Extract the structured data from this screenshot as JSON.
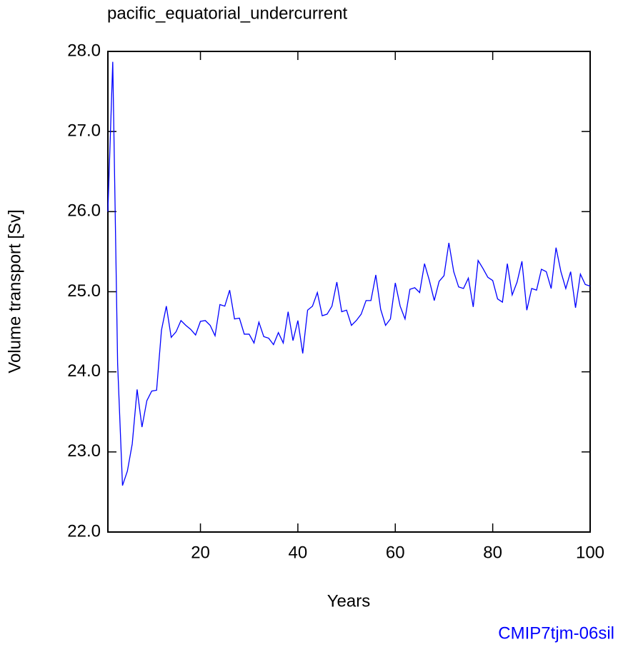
{
  "chart_data": {
    "type": "line",
    "title": "pacific_equatorial_undercurrent",
    "x_label": "Years",
    "y_label": "Volume transport [Sv]",
    "footer": "CMIP7tjm-06sil",
    "color": "#0000ff",
    "x": [
      1,
      2,
      3,
      4,
      5,
      6,
      7,
      8,
      9,
      10,
      11,
      12,
      13,
      14,
      15,
      16,
      17,
      18,
      19,
      20,
      21,
      22,
      23,
      24,
      25,
      26,
      27,
      28,
      29,
      30,
      31,
      32,
      33,
      34,
      35,
      36,
      37,
      38,
      39,
      40,
      41,
      42,
      43,
      44,
      45,
      46,
      47,
      48,
      49,
      50,
      51,
      52,
      53,
      54,
      55,
      56,
      57,
      58,
      59,
      60,
      61,
      62,
      63,
      64,
      65,
      66,
      67,
      68,
      69,
      70,
      71,
      72,
      73,
      74,
      75,
      76,
      77,
      78,
      79,
      80,
      81,
      82,
      83,
      84,
      85,
      86,
      87,
      88,
      89,
      90,
      91,
      92,
      93,
      94,
      95,
      96,
      97,
      98,
      99,
      100
    ],
    "values": [
      26.0,
      27.87,
      24.1,
      22.58,
      22.76,
      23.1,
      23.78,
      23.31,
      23.64,
      23.76,
      23.77,
      24.52,
      24.82,
      24.43,
      24.5,
      24.64,
      24.58,
      24.53,
      24.46,
      24.63,
      24.64,
      24.58,
      24.45,
      24.84,
      24.82,
      25.02,
      24.66,
      24.67,
      24.47,
      24.47,
      24.36,
      24.62,
      24.44,
      24.42,
      24.34,
      24.49,
      24.36,
      24.75,
      24.39,
      24.64,
      24.23,
      24.77,
      24.82,
      24.99,
      24.7,
      24.72,
      24.82,
      25.12,
      24.75,
      24.77,
      24.58,
      24.64,
      24.72,
      24.89,
      24.89,
      25.21,
      24.78,
      24.58,
      24.66,
      25.11,
      24.82,
      24.66,
      25.03,
      25.05,
      24.99,
      25.35,
      25.14,
      24.89,
      25.13,
      25.2,
      25.61,
      25.25,
      25.06,
      25.04,
      25.17,
      24.81,
      25.39,
      25.29,
      25.18,
      25.14,
      24.91,
      24.87,
      25.35,
      24.96,
      25.12,
      25.38,
      24.77,
      25.04,
      25.02,
      25.28,
      25.25,
      25.04,
      25.55,
      25.25,
      25.04,
      25.25,
      24.8,
      25.22,
      25.09,
      25.07
    ],
    "xlim": [
      1,
      100
    ],
    "xticks": [
      20,
      40,
      60,
      80,
      100
    ],
    "ylim": [
      22,
      28
    ],
    "yticks": [
      {
        "value": 22,
        "label": "22.0"
      },
      {
        "value": 23,
        "label": "23.0"
      },
      {
        "value": 24,
        "label": "24.0"
      },
      {
        "value": 25,
        "label": "25.0"
      },
      {
        "value": 26,
        "label": "26.0"
      },
      {
        "value": 27,
        "label": "27.0"
      },
      {
        "value": 28,
        "label": "28.0"
      }
    ]
  }
}
